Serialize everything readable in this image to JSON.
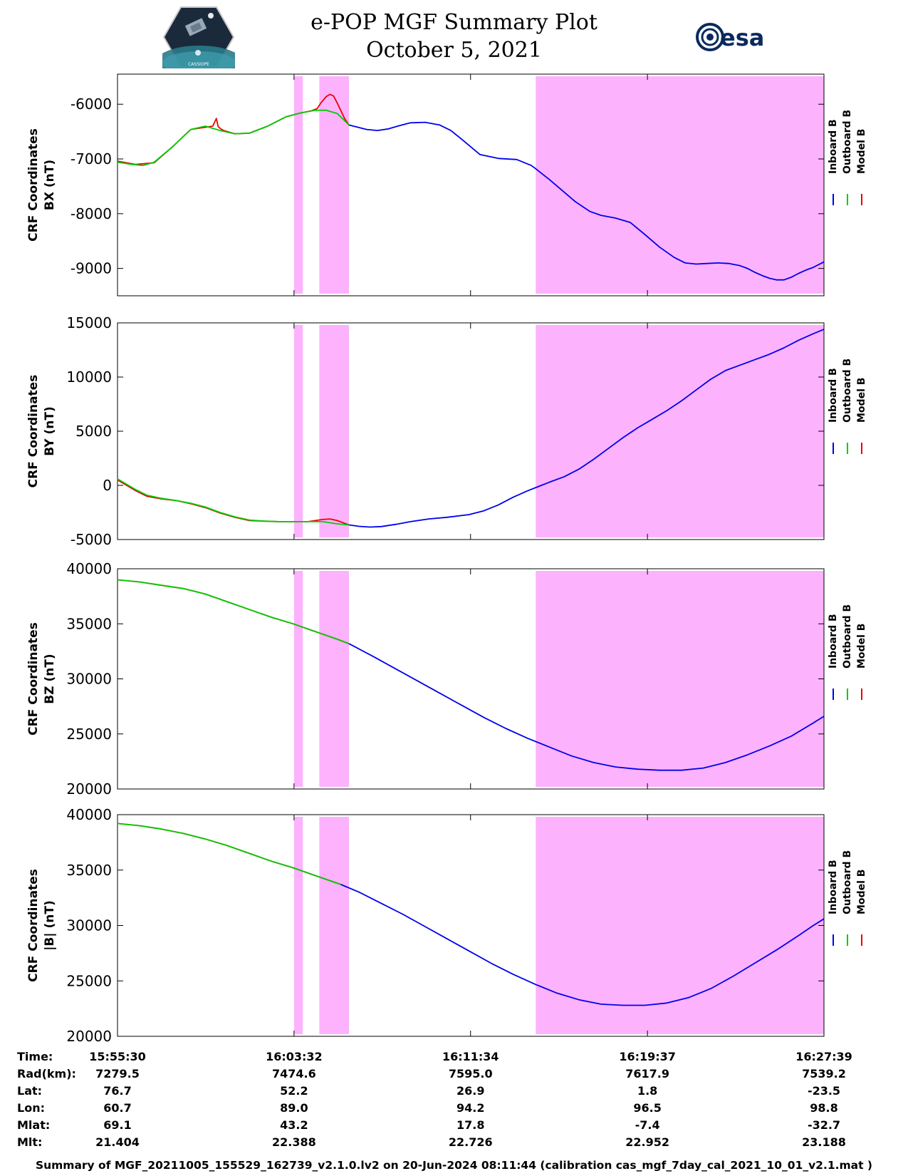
{
  "header": {
    "title_line1": "e-POP MGF Summary Plot",
    "title_line2": "October 5, 2021",
    "logo_left_text": "CASSIOPE",
    "logo_right_text": "esa"
  },
  "colors": {
    "inboard": "#0000ee",
    "outboard": "#00cc00",
    "model": "#ee0000",
    "shading": "#fdb2fd"
  },
  "legend": {
    "labels": [
      "Inboard B",
      "Outboard B",
      "Model B"
    ]
  },
  "time_axis": {
    "start_seconds": 0,
    "end_seconds": 1929,
    "tick_labels": [
      "15:55:30",
      "16:03:32",
      "16:11:34",
      "16:19:37",
      "16:27:39"
    ],
    "tick_offsets_seconds": [
      0,
      482,
      964,
      1447,
      1929
    ]
  },
  "shaded_intervals_seconds": [
    [
      482,
      506
    ],
    [
      551,
      632
    ],
    [
      1142,
      1929
    ]
  ],
  "chart_data": [
    {
      "type": "line",
      "ylabel_line1": "CRF Coordinates",
      "ylabel_line2": "BX (nT)",
      "ylim": [
        -9500,
        -5450
      ],
      "yticks": [
        -6000,
        -7000,
        -8000,
        -9000
      ],
      "inboard": {
        "x": [
          632,
          680,
          710,
          740,
          770,
          800,
          840,
          880,
          910,
          940,
          990,
          1040,
          1090,
          1130,
          1142,
          1180,
          1210,
          1250,
          1290,
          1320,
          1360,
          1400,
          1440,
          1480,
          1520,
          1550,
          1580,
          1610,
          1640,
          1670,
          1700,
          1720,
          1740,
          1760,
          1780,
          1800,
          1820,
          1840,
          1860,
          1880,
          1900,
          1929
        ],
        "y": [
          -6380,
          -6460,
          -6480,
          -6450,
          -6390,
          -6340,
          -6330,
          -6380,
          -6480,
          -6640,
          -6920,
          -6990,
          -7010,
          -7120,
          -7180,
          -7380,
          -7550,
          -7780,
          -7960,
          -8030,
          -8080,
          -8160,
          -8380,
          -8610,
          -8800,
          -8900,
          -8920,
          -8910,
          -8900,
          -8910,
          -8950,
          -9000,
          -9070,
          -9130,
          -9180,
          -9210,
          -9210,
          -9160,
          -9090,
          -9030,
          -8980,
          -8880
        ]
      },
      "outboard": {
        "x": [
          0,
          40,
          70,
          100,
          150,
          200,
          240,
          280,
          320,
          360,
          410,
          460,
          500,
          540,
          570,
          600,
          632
        ],
        "y": [
          -7060,
          -7100,
          -7120,
          -7060,
          -6780,
          -6460,
          -6400,
          -6480,
          -6540,
          -6530,
          -6400,
          -6230,
          -6160,
          -6110,
          -6110,
          -6170,
          -6380
        ]
      },
      "model": {
        "x": [
          0,
          50,
          100,
          150,
          200,
          260,
          270,
          275,
          282,
          290,
          320,
          360,
          410,
          460,
          500,
          530,
          545,
          555,
          570,
          580,
          590,
          600,
          610,
          620,
          632
        ],
        "y": [
          -7040,
          -7100,
          -7070,
          -6780,
          -6460,
          -6400,
          -6260,
          -6410,
          -6450,
          -6480,
          -6540,
          -6530,
          -6400,
          -6230,
          -6160,
          -6120,
          -6080,
          -5980,
          -5860,
          -5820,
          -5850,
          -5980,
          -6120,
          -6260,
          -6380
        ]
      }
    },
    {
      "type": "line",
      "ylabel_line1": "CRF Coordinates",
      "ylabel_line2": "BY (nT)",
      "ylim": [
        -5000,
        15000
      ],
      "yticks": [
        -5000,
        0,
        5000,
        10000,
        15000
      ],
      "inboard": {
        "x": [
          632,
          660,
          690,
          720,
          760,
          800,
          850,
          900,
          960,
          1000,
          1040,
          1080,
          1120,
          1150,
          1180,
          1220,
          1260,
          1300,
          1340,
          1380,
          1420,
          1460,
          1500,
          1540,
          1580,
          1620,
          1660,
          1700,
          1740,
          1780,
          1820,
          1860,
          1900,
          1929
        ],
        "y": [
          -3650,
          -3780,
          -3850,
          -3800,
          -3600,
          -3350,
          -3100,
          -2950,
          -2700,
          -2350,
          -1800,
          -1100,
          -500,
          -100,
          300,
          800,
          1500,
          2400,
          3400,
          4400,
          5300,
          6100,
          6900,
          7800,
          8800,
          9800,
          10600,
          11100,
          11600,
          12100,
          12700,
          13400,
          14000,
          14400
        ]
      },
      "outboard": {
        "x": [
          0,
          25,
          50,
          80,
          120,
          160,
          200,
          240,
          280,
          320,
          360,
          400,
          440,
          480,
          520,
          560,
          600,
          632
        ],
        "y": [
          600,
          100,
          -400,
          -900,
          -1200,
          -1400,
          -1650,
          -2000,
          -2500,
          -2900,
          -3200,
          -3300,
          -3350,
          -3350,
          -3350,
          -3350,
          -3550,
          -3650
        ]
      },
      "model": {
        "x": [
          0,
          25,
          50,
          80,
          120,
          160,
          200,
          240,
          280,
          320,
          360,
          400,
          440,
          480,
          520,
          560,
          580,
          600,
          620,
          632
        ],
        "y": [
          500,
          0,
          -500,
          -1000,
          -1250,
          -1400,
          -1700,
          -2050,
          -2550,
          -2950,
          -3250,
          -3300,
          -3350,
          -3350,
          -3350,
          -3150,
          -3100,
          -3250,
          -3500,
          -3650
        ]
      }
    },
    {
      "type": "line",
      "ylabel_line1": "CRF Coordinates",
      "ylabel_line2": "BZ (nT)",
      "ylim": [
        20000,
        40000
      ],
      "yticks": [
        20000,
        25000,
        30000,
        35000,
        40000
      ],
      "inboard": {
        "x": [
          632,
          700,
          760,
          820,
          880,
          940,
          1000,
          1060,
          1120,
          1180,
          1240,
          1300,
          1360,
          1420,
          1480,
          1540,
          1600,
          1660,
          1720,
          1780,
          1840,
          1900,
          1929
        ],
        "y": [
          33200,
          32000,
          30900,
          29800,
          28700,
          27600,
          26500,
          25500,
          24600,
          23800,
          23000,
          22400,
          22000,
          21800,
          21700,
          21700,
          21900,
          22400,
          23100,
          23900,
          24800,
          26000,
          26600
        ]
      },
      "outboard": {
        "x": [
          0,
          60,
          120,
          180,
          240,
          300,
          360,
          420,
          480,
          540,
          600,
          632
        ],
        "y": [
          39000,
          38800,
          38500,
          38200,
          37700,
          37000,
          36300,
          35600,
          35000,
          34300,
          33600,
          33200
        ]
      },
      "model": {
        "x": [
          0,
          60,
          120,
          180,
          240,
          300,
          360,
          420,
          480,
          540,
          600,
          632
        ],
        "y": [
          39000,
          38800,
          38500,
          38200,
          37700,
          37000,
          36300,
          35600,
          35000,
          34300,
          33600,
          33200
        ]
      }
    },
    {
      "type": "line",
      "ylabel_line1": "CRF Coordinates",
      "ylabel_line2": "|B| (nT)",
      "ylim": [
        20000,
        40000
      ],
      "yticks": [
        20000,
        25000,
        30000,
        35000,
        40000
      ],
      "inboard": {
        "x": [
          610,
          660,
          720,
          780,
          840,
          900,
          960,
          1020,
          1080,
          1140,
          1200,
          1260,
          1320,
          1380,
          1440,
          1500,
          1560,
          1620,
          1680,
          1740,
          1800,
          1860,
          1900,
          1929
        ],
        "y": [
          33700,
          33000,
          32000,
          31000,
          29900,
          28800,
          27700,
          26600,
          25600,
          24700,
          23900,
          23300,
          22900,
          22800,
          22800,
          23000,
          23500,
          24300,
          25400,
          26600,
          27800,
          29100,
          30000,
          30600
        ]
      },
      "outboard": {
        "x": [
          0,
          60,
          120,
          180,
          240,
          300,
          360,
          420,
          480,
          540,
          610
        ],
        "y": [
          39200,
          39000,
          38700,
          38300,
          37800,
          37200,
          36500,
          35800,
          35200,
          34500,
          33700
        ]
      },
      "model": {
        "x": [
          0,
          60,
          120,
          180,
          240,
          300,
          360,
          420,
          480,
          540,
          610
        ],
        "y": [
          39200,
          39000,
          38700,
          38300,
          37800,
          37200,
          36500,
          35800,
          35200,
          34500,
          33700
        ]
      }
    }
  ],
  "ephemeris": {
    "labels": [
      "Time:",
      "Rad(km):",
      "Lat:",
      "Lon:",
      "Mlat:",
      "Mlt:"
    ],
    "columns": [
      [
        "15:55:30",
        "7279.5",
        "76.7",
        "60.7",
        "69.1",
        "21.404"
      ],
      [
        "16:03:32",
        "7474.6",
        "52.2",
        "89.0",
        "43.2",
        "22.388"
      ],
      [
        "16:11:34",
        "7595.0",
        "26.9",
        "94.2",
        "17.8",
        "22.726"
      ],
      [
        "16:19:37",
        "7617.9",
        "1.8",
        "96.5",
        "-7.4",
        "22.952"
      ],
      [
        "16:27:39",
        "7539.2",
        "-23.5",
        "98.8",
        "-32.7",
        "23.188"
      ]
    ]
  },
  "footer": "Summary of MGF_20211005_155529_162739_v2.1.0.lv2 on 20-Jun-2024 08:11:44 (calibration cas_mgf_7day_cal_2021_10_01_v2.1.mat )"
}
